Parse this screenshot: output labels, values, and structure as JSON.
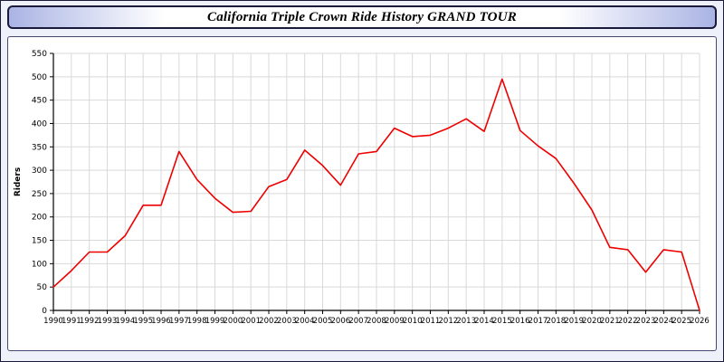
{
  "header": {
    "title": "California Triple Crown Ride History GRAND TOUR"
  },
  "chart_data": {
    "type": "line",
    "title": "California Triple Crown Ride History GRAND TOUR",
    "xlabel": "",
    "ylabel": "Riders",
    "ylim": [
      0,
      550
    ],
    "y_tick_step": 50,
    "grid": true,
    "legend_position": "none",
    "line_color": "#ee0000",
    "grid_color": "#d9d9d9",
    "axis_color": "#000000",
    "categories": [
      "1990",
      "1991",
      "1992",
      "1993",
      "1994",
      "1995",
      "1996",
      "1997",
      "1998",
      "1999",
      "2000",
      "2001",
      "2002",
      "2003",
      "2004",
      "2005",
      "2006",
      "2007",
      "2008",
      "2009",
      "2010",
      "2011",
      "2012",
      "2013",
      "2014",
      "2015",
      "2016",
      "2017",
      "2018",
      "2019",
      "2020",
      "2021",
      "2022",
      "2023",
      "2024",
      "2025",
      "2026"
    ],
    "series": [
      {
        "name": "Riders",
        "values": [
          50,
          85,
          125,
          125,
          160,
          225,
          225,
          340,
          280,
          240,
          210,
          212,
          265,
          280,
          343,
          310,
          268,
          335,
          340,
          390,
          372,
          375,
          390,
          410,
          383,
          495,
          385,
          352,
          325,
          272,
          215,
          135,
          130,
          82,
          130,
          125,
          0
        ]
      }
    ]
  }
}
